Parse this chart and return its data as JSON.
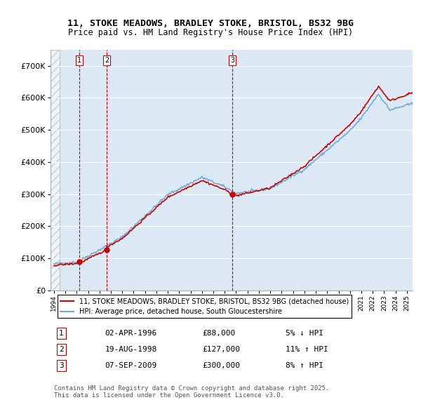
{
  "title_line1": "11, STOKE MEADOWS, BRADLEY STOKE, BRISTOL, BS32 9BG",
  "title_line2": "Price paid vs. HM Land Registry's House Price Index (HPI)",
  "xlabel": "",
  "ylabel": "",
  "ylim": [
    0,
    750000
  ],
  "xlim_start": 1994.0,
  "xlim_end": 2025.5,
  "bg_color": "#dce9f5",
  "plot_bg_color": "#dce9f5",
  "hatch_color": "#b0c4d8",
  "grid_color": "#ffffff",
  "sale_dates": [
    1996.25,
    1998.64,
    2009.68
  ],
  "sale_prices": [
    88000,
    127000,
    300000
  ],
  "sale_labels": [
    "1",
    "2",
    "3"
  ],
  "vline_color": "#cc0000",
  "sale_marker_color": "#cc0000",
  "legend_line1": "11, STOKE MEADOWS, BRADLEY STOKE, BRISTOL, BS32 9BG (detached house)",
  "legend_line2": "HPI: Average price, detached house, South Gloucestershire",
  "table_rows": [
    [
      "1",
      "02-APR-1996",
      "£88,000",
      "5% ↓ HPI"
    ],
    [
      "2",
      "19-AUG-1998",
      "£127,000",
      "11% ↑ HPI"
    ],
    [
      "3",
      "07-SEP-2009",
      "£300,000",
      "8% ↑ HPI"
    ]
  ],
  "footer": "Contains HM Land Registry data © Crown copyright and database right 2025.\nThis data is licensed under the Open Government Licence v3.0.",
  "hpi_color": "#6baed6",
  "price_color": "#cc0000"
}
